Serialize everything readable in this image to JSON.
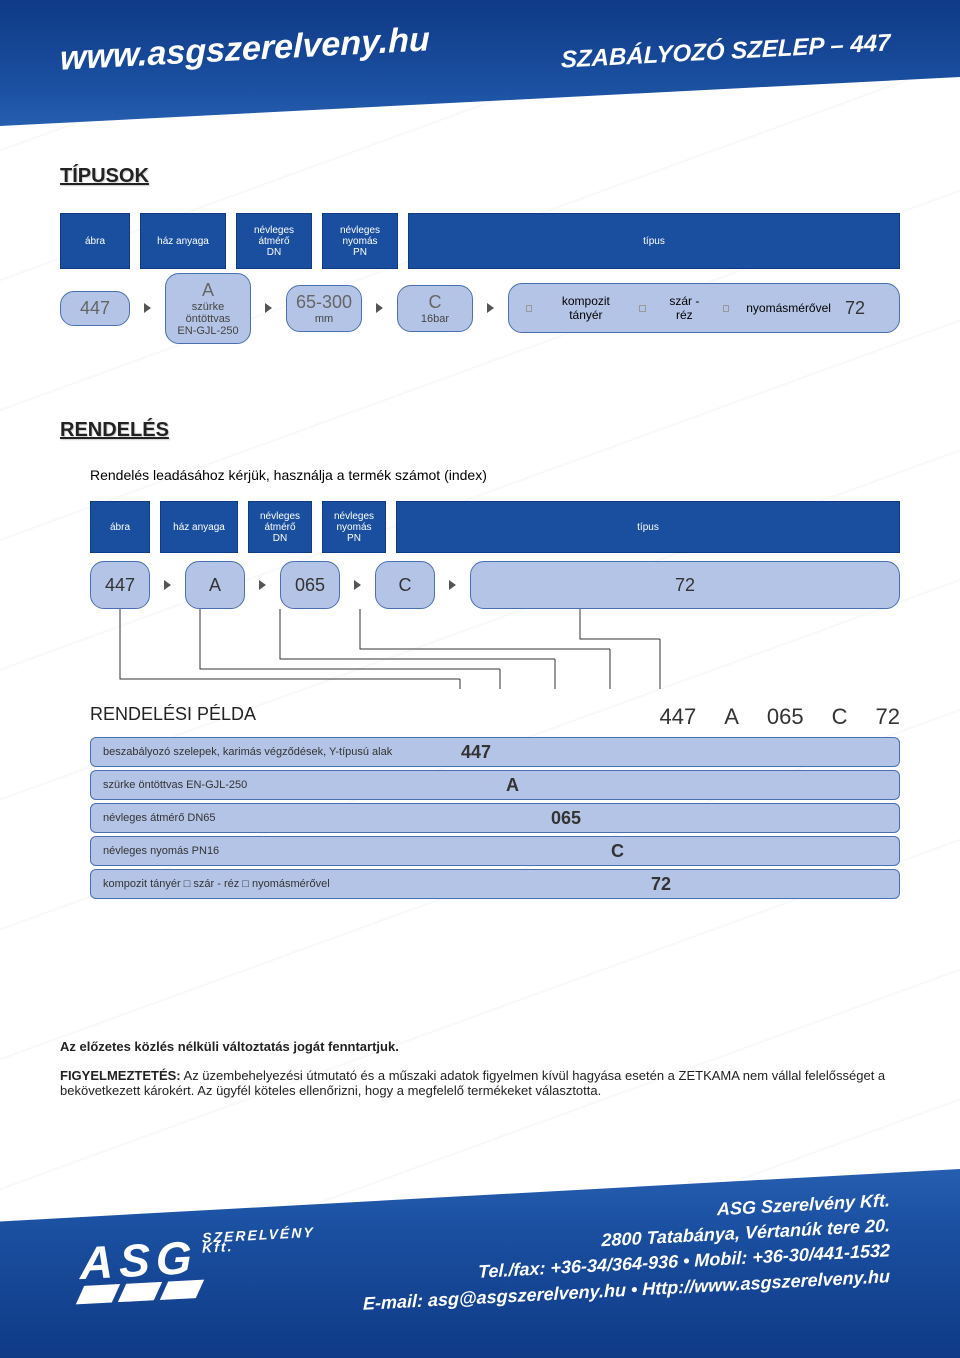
{
  "banner": {
    "url": "www.asgszerelveny.hu",
    "title": "SZABÁLYOZÓ SZELEP  – 447"
  },
  "sections": {
    "types": "TÍPUSOK",
    "order": "RENDELÉS"
  },
  "header_cols": {
    "abra": "ábra",
    "haz": "ház anyaga",
    "dn_l1": "névleges",
    "dn_l2": "átmérő",
    "dn_l3": "DN",
    "pn_l1": "névleges",
    "pn_l2": "nyomás",
    "pn_l3": "PN",
    "tipus": "típus"
  },
  "types_row": {
    "abra": "447",
    "haz_code": "A",
    "haz_l1": "szürke",
    "haz_l2": "öntöttvas",
    "haz_l3": "EN-GJL-250",
    "dn_code": "65-300",
    "dn_unit": "mm",
    "pn_code": "C",
    "pn_unit": "16bar",
    "d1": "kompozit tányér",
    "d2": "szár - réz",
    "d3": "nyomásmérővel",
    "code": "72"
  },
  "order_intro": "Rendelés leadásához kérjük, használja a termék számot (index)",
  "order_row": {
    "abra": "447",
    "haz": "A",
    "dn": "065",
    "pn": "C",
    "tipus": "72"
  },
  "example": {
    "title": "RENDELÉSI PÉLDA",
    "codes": [
      "447",
      "A",
      "065",
      "C",
      "72"
    ],
    "rows": [
      {
        "label": "beszabályozó szelepek, karimás végződések, Y-típusú alak",
        "val": "447",
        "pos": 370
      },
      {
        "label": "szürke öntöttvas EN-GJL-250",
        "val": "A",
        "pos": 415
      },
      {
        "label": "névleges átmérő DN65",
        "val": "065",
        "pos": 460
      },
      {
        "label": "névleges nyomás PN16",
        "val": "C",
        "pos": 520
      },
      {
        "label": "kompozit tányér □ szár - réz □ nyomásmérővel",
        "val": "72",
        "pos": 560
      }
    ]
  },
  "disclaimer": "Az előzetes közlés nélküli változtatás jogát fenntartjuk.",
  "warning_label": "FIGYELMEZTETÉS:",
  "warning_text": " Az üzembehelyezési útmutató és a műszaki adatok figyelmen kívül hagyása esetén a ZETKAMA nem vállal felelősséget a bekövetkezett károkért.  Az ügyfél köteles ellenőrizni, hogy a megfelelő termékeket választotta.",
  "footer": {
    "logo_big": "ASG",
    "logo_s1": "SZERELVÉNY",
    "logo_s2": "Kft.",
    "l1": "ASG Szerelvény Kft.",
    "l2": "2800 Tatabánya, Vértanúk tere 20.",
    "l3": "Tel./fax: +36-34/364-936 • Mobil: +36-30/441-1532",
    "l4": "E-mail: asg@asgszerelveny.hu • Http://www.asgszerelveny.hu"
  },
  "colors": {
    "brand": "#1a4fa0",
    "pill": "#b4c4e6"
  }
}
